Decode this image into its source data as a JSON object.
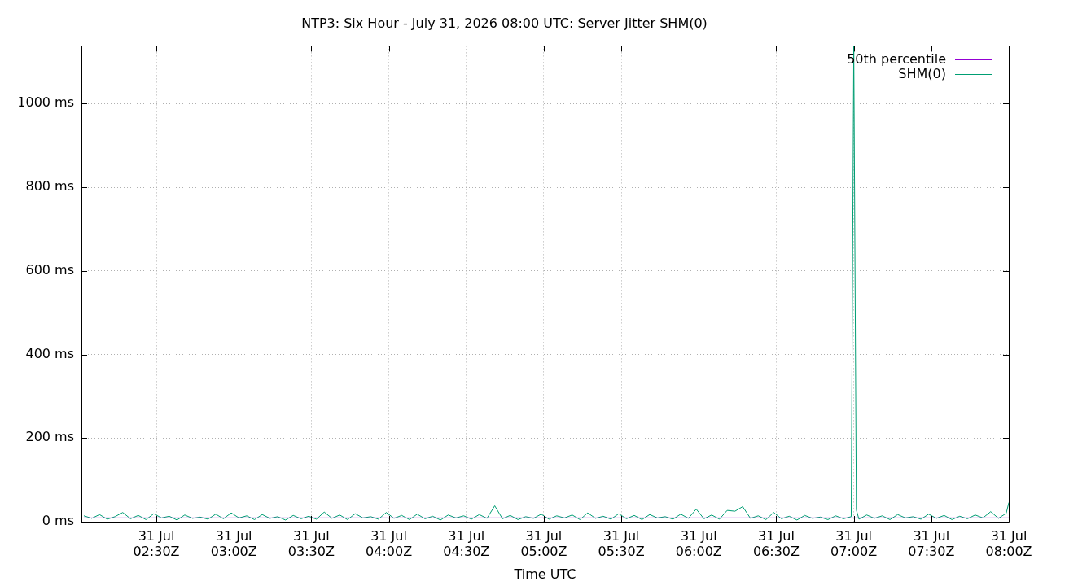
{
  "chart_data": {
    "type": "line",
    "title": "NTP3: Six Hour - July 31, 2026 08:00 UTC: Server Jitter SHM(0)",
    "xlabel": "Time UTC",
    "x": [
      "2026-07-31T02:02",
      "2026-07-31T02:05",
      "2026-07-31T02:08",
      "2026-07-31T02:11",
      "2026-07-31T02:14",
      "2026-07-31T02:17",
      "2026-07-31T02:20",
      "2026-07-31T02:23",
      "2026-07-31T02:26",
      "2026-07-31T02:29",
      "2026-07-31T02:32",
      "2026-07-31T02:35",
      "2026-07-31T02:38",
      "2026-07-31T02:41",
      "2026-07-31T02:44",
      "2026-07-31T02:47",
      "2026-07-31T02:50",
      "2026-07-31T02:53",
      "2026-07-31T02:56",
      "2026-07-31T02:59",
      "2026-07-31T03:02",
      "2026-07-31T03:05",
      "2026-07-31T03:08",
      "2026-07-31T03:11",
      "2026-07-31T03:14",
      "2026-07-31T03:17",
      "2026-07-31T03:20",
      "2026-07-31T03:23",
      "2026-07-31T03:26",
      "2026-07-31T03:29",
      "2026-07-31T03:32",
      "2026-07-31T03:35",
      "2026-07-31T03:38",
      "2026-07-31T03:41",
      "2026-07-31T03:44",
      "2026-07-31T03:47",
      "2026-07-31T03:50",
      "2026-07-31T03:53",
      "2026-07-31T03:56",
      "2026-07-31T03:59",
      "2026-07-31T04:02",
      "2026-07-31T04:05",
      "2026-07-31T04:08",
      "2026-07-31T04:11",
      "2026-07-31T04:14",
      "2026-07-31T04:17",
      "2026-07-31T04:20",
      "2026-07-31T04:23",
      "2026-07-31T04:26",
      "2026-07-31T04:29",
      "2026-07-31T04:32",
      "2026-07-31T04:35",
      "2026-07-31T04:38",
      "2026-07-31T04:41",
      "2026-07-31T04:44",
      "2026-07-31T04:47",
      "2026-07-31T04:50",
      "2026-07-31T04:53",
      "2026-07-31T04:56",
      "2026-07-31T04:59",
      "2026-07-31T05:02",
      "2026-07-31T05:05",
      "2026-07-31T05:08",
      "2026-07-31T05:11",
      "2026-07-31T05:14",
      "2026-07-31T05:17",
      "2026-07-31T05:20",
      "2026-07-31T05:23",
      "2026-07-31T05:26",
      "2026-07-31T05:29",
      "2026-07-31T05:32",
      "2026-07-31T05:35",
      "2026-07-31T05:38",
      "2026-07-31T05:41",
      "2026-07-31T05:44",
      "2026-07-31T05:47",
      "2026-07-31T05:50",
      "2026-07-31T05:53",
      "2026-07-31T05:56",
      "2026-07-31T05:59",
      "2026-07-31T06:02",
      "2026-07-31T06:05",
      "2026-07-31T06:08",
      "2026-07-31T06:11",
      "2026-07-31T06:14",
      "2026-07-31T06:17",
      "2026-07-31T06:20",
      "2026-07-31T06:23",
      "2026-07-31T06:26",
      "2026-07-31T06:29",
      "2026-07-31T06:32",
      "2026-07-31T06:35",
      "2026-07-31T06:38",
      "2026-07-31T06:41",
      "2026-07-31T06:44",
      "2026-07-31T06:47",
      "2026-07-31T06:50",
      "2026-07-31T06:53",
      "2026-07-31T06:56",
      "2026-07-31T06:59",
      "2026-07-31T07:00",
      "2026-07-31T07:01",
      "2026-07-31T07:02",
      "2026-07-31T07:05",
      "2026-07-31T07:08",
      "2026-07-31T07:11",
      "2026-07-31T07:14",
      "2026-07-31T07:17",
      "2026-07-31T07:20",
      "2026-07-31T07:23",
      "2026-07-31T07:26",
      "2026-07-31T07:29",
      "2026-07-31T07:32",
      "2026-07-31T07:35",
      "2026-07-31T07:38",
      "2026-07-31T07:41",
      "2026-07-31T07:44",
      "2026-07-31T07:47",
      "2026-07-31T07:50",
      "2026-07-31T07:53",
      "2026-07-31T07:56",
      "2026-07-31T07:59",
      "2026-07-31T08:00"
    ],
    "series": [
      {
        "name": "50th percentile",
        "color": "#9400d3",
        "x": [
          "2026-07-31T02:02",
          "2026-07-31T08:00"
        ],
        "values": [
          9,
          9
        ]
      },
      {
        "name": "SHM(0)",
        "color": "#009e73",
        "values": [
          14,
          8,
          17,
          6,
          12,
          22,
          7,
          15,
          5,
          19,
          9,
          13,
          4,
          16,
          8,
          11,
          6,
          18,
          7,
          21,
          9,
          14,
          5,
          17,
          8,
          12,
          4,
          15,
          7,
          13,
          6,
          23,
          8,
          16,
          5,
          19,
          9,
          12,
          6,
          22,
          8,
          15,
          5,
          18,
          7,
          13,
          4,
          16,
          9,
          14,
          6,
          17,
          8,
          38,
          7,
          15,
          5,
          12,
          8,
          18,
          6,
          14,
          9,
          16,
          5,
          21,
          8,
          13,
          6,
          19,
          7,
          15,
          5,
          17,
          9,
          12,
          6,
          18,
          8,
          30,
          7,
          16,
          6,
          27,
          25,
          36,
          8,
          14,
          5,
          22,
          7,
          13,
          4,
          15,
          8,
          11,
          5,
          14,
          7,
          12,
          1138,
          28,
          6,
          16,
          8,
          14,
          5,
          17,
          9,
          12,
          6,
          18,
          8,
          15,
          5,
          13,
          7,
          16,
          9,
          24,
          8,
          20,
          45
        ]
      }
    ],
    "xlim": [
      "2026-07-31T02:01",
      "2026-07-31T08:00"
    ],
    "xticks": [
      {
        "value": "2026-07-31T02:30",
        "label": "31 Jul\n02:30Z"
      },
      {
        "value": "2026-07-31T03:00",
        "label": "31 Jul\n03:00Z"
      },
      {
        "value": "2026-07-31T03:30",
        "label": "31 Jul\n03:30Z"
      },
      {
        "value": "2026-07-31T04:00",
        "label": "31 Jul\n04:00Z"
      },
      {
        "value": "2026-07-31T04:30",
        "label": "31 Jul\n04:30Z"
      },
      {
        "value": "2026-07-31T05:00",
        "label": "31 Jul\n05:00Z"
      },
      {
        "value": "2026-07-31T05:30",
        "label": "31 Jul\n05:30Z"
      },
      {
        "value": "2026-07-31T06:00",
        "label": "31 Jul\n06:00Z"
      },
      {
        "value": "2026-07-31T06:30",
        "label": "31 Jul\n06:30Z"
      },
      {
        "value": "2026-07-31T07:00",
        "label": "31 Jul\n07:00Z"
      },
      {
        "value": "2026-07-31T07:30",
        "label": "31 Jul\n07:30Z"
      },
      {
        "value": "2026-07-31T08:00",
        "label": "31 Jul\n08:00Z"
      }
    ],
    "ylim": [
      0,
      1138
    ],
    "yticks": [
      {
        "value": 0,
        "label": "0 ms"
      },
      {
        "value": 200,
        "label": "200 ms"
      },
      {
        "value": 400,
        "label": "400 ms"
      },
      {
        "value": 600,
        "label": "600 ms"
      },
      {
        "value": 800,
        "label": "800 ms"
      },
      {
        "value": 1000,
        "label": "1000 ms"
      }
    ],
    "grid": true,
    "legend": "top right",
    "marker": "none",
    "line_style": "solid"
  }
}
